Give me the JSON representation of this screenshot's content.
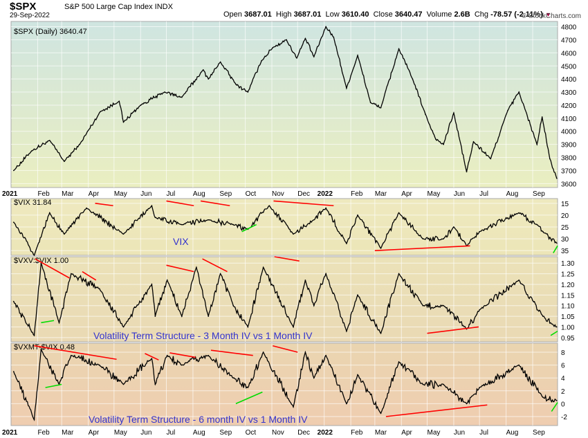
{
  "header": {
    "symbol": "$SPX",
    "name": "S&P 500 Large Cap Index INDX",
    "date": "29-Sep-2022",
    "open_label": "Open",
    "open": "3687.01",
    "high_label": "High",
    "high": "3687.01",
    "low_label": "Low",
    "low": "3610.40",
    "close_label": "Close",
    "close": "3640.47",
    "volume_label": "Volume",
    "volume": "2.6B",
    "chg_label": "Chg",
    "chg": "-78.57 (-2.11%)",
    "credit": "© StockCharts.com"
  },
  "colors": {
    "price_line": "#000000",
    "trend_red": "#ff0000",
    "trend_green": "#00dd00",
    "annotation_text": "#3333cc"
  },
  "chart_data": [
    {
      "type": "line",
      "legend": "$SPX (Daily) 3640.47",
      "y_ticks": [
        3600,
        3700,
        3800,
        3900,
        4000,
        4100,
        4200,
        4300,
        4400,
        4500,
        4600,
        4700,
        4800
      ],
      "ylim": [
        3570,
        4840
      ],
      "x": [
        "2021-01-04",
        "2021-01-25",
        "2021-02-15",
        "2021-03-04",
        "2021-03-22",
        "2021-04-15",
        "2021-05-07",
        "2021-05-12",
        "2021-06-01",
        "2021-06-29",
        "2021-07-19",
        "2021-08-13",
        "2021-08-19",
        "2021-09-02",
        "2021-09-20",
        "2021-10-04",
        "2021-10-20",
        "2021-11-02",
        "2021-11-18",
        "2021-11-30",
        "2021-12-10",
        "2021-12-20",
        "2022-01-03",
        "2022-01-12",
        "2022-01-27",
        "2022-02-09",
        "2022-02-24",
        "2022-03-08",
        "2022-03-29",
        "2022-04-14",
        "2022-04-29",
        "2022-05-11",
        "2022-05-20",
        "2022-06-01",
        "2022-06-16",
        "2022-06-24",
        "2022-07-14",
        "2022-08-03",
        "2022-08-16",
        "2022-09-06",
        "2022-09-12",
        "2022-09-21",
        "2022-09-29"
      ],
      "values": [
        3700,
        3850,
        3930,
        3770,
        3900,
        4150,
        4230,
        4070,
        4200,
        4300,
        4260,
        4470,
        4400,
        4530,
        4360,
        4300,
        4540,
        4640,
        4700,
        4560,
        4710,
        4570,
        4800,
        4720,
        4330,
        4580,
        4220,
        4180,
        4630,
        4400,
        4130,
        3940,
        3900,
        4140,
        3690,
        3920,
        3790,
        4160,
        4300,
        3900,
        4110,
        3790,
        3640
      ]
    },
    {
      "type": "line",
      "annotation": "VIX",
      "legend": "$VIX 31.84",
      "inverted": true,
      "y_ticks": [
        15,
        20,
        25,
        30,
        35
      ],
      "ylim": [
        37,
        13
      ],
      "x": [
        "2021-01-04",
        "2021-01-28",
        "2021-02-15",
        "2021-03-04",
        "2021-03-30",
        "2021-05-12",
        "2021-06-14",
        "2021-06-18",
        "2021-07-19",
        "2021-08-19",
        "2021-09-17",
        "2021-10-04",
        "2021-10-29",
        "2021-11-26",
        "2021-12-20",
        "2022-01-03",
        "2022-01-27",
        "2022-02-09",
        "2022-03-08",
        "2022-03-29",
        "2022-04-26",
        "2022-05-20",
        "2022-06-01",
        "2022-06-16",
        "2022-07-01",
        "2022-08-16",
        "2022-09-06",
        "2022-09-13",
        "2022-09-29"
      ],
      "values": [
        23,
        37,
        19,
        28,
        17,
        28,
        16,
        21,
        24,
        22,
        24,
        26,
        16,
        28,
        22,
        17,
        32,
        20,
        34,
        19,
        30,
        30,
        25,
        33,
        27,
        19,
        24,
        27,
        31.84
      ]
    },
    {
      "type": "line",
      "annotation": "Volatility Term Structure - 3 Month IV vs 1 Month IV",
      "legend": "$VXV:$VIX 1.00",
      "y_ticks": [
        0.95,
        1.0,
        1.05,
        1.1,
        1.15,
        1.2,
        1.25,
        1.3
      ],
      "ylim": [
        0.93,
        1.33
      ],
      "x": [
        "2021-01-04",
        "2021-01-28",
        "2021-02-05",
        "2021-02-26",
        "2021-03-12",
        "2021-04-14",
        "2021-05-12",
        "2021-06-14",
        "2021-06-18",
        "2021-07-02",
        "2021-07-19",
        "2021-08-05",
        "2021-08-19",
        "2021-09-02",
        "2021-09-17",
        "2021-10-04",
        "2021-10-22",
        "2021-11-26",
        "2021-12-10",
        "2021-12-20",
        "2022-01-03",
        "2022-01-27",
        "2022-02-09",
        "2022-03-08",
        "2022-03-29",
        "2022-04-26",
        "2022-05-20",
        "2022-06-16",
        "2022-07-01",
        "2022-08-16",
        "2022-09-13",
        "2022-09-29"
      ],
      "values": [
        1.12,
        0.96,
        1.3,
        1.02,
        1.25,
        1.18,
        1.0,
        1.2,
        1.05,
        1.22,
        1.05,
        1.28,
        1.05,
        1.25,
        1.1,
        1.0,
        1.28,
        1.0,
        1.22,
        1.1,
        1.25,
        0.98,
        1.15,
        0.97,
        1.25,
        1.1,
        1.1,
        0.99,
        1.08,
        1.22,
        1.05,
        1.0
      ]
    },
    {
      "type": "line",
      "annotation": "Volatility Term Structure - 6 month IV vs 1 Month IV",
      "legend": "$VXMT-$VIX 0.48",
      "y_ticks": [
        -2,
        0,
        2,
        4,
        6,
        8
      ],
      "ylim": [
        -3.4,
        9.4
      ],
      "x": [
        "2021-01-04",
        "2021-01-28",
        "2021-02-05",
        "2021-02-26",
        "2021-03-12",
        "2021-04-14",
        "2021-05-12",
        "2021-06-14",
        "2021-06-18",
        "2021-07-02",
        "2021-07-19",
        "2021-08-19",
        "2021-09-17",
        "2021-10-04",
        "2021-10-22",
        "2021-11-26",
        "2021-12-10",
        "2021-12-20",
        "2022-01-03",
        "2022-01-27",
        "2022-02-09",
        "2022-03-08",
        "2022-03-29",
        "2022-04-26",
        "2022-05-20",
        "2022-06-16",
        "2022-07-01",
        "2022-08-16",
        "2022-09-13",
        "2022-09-29"
      ],
      "values": [
        5,
        -2.5,
        8.5,
        3,
        7.5,
        6,
        3,
        7,
        3,
        7.5,
        6,
        7.5,
        4,
        2.5,
        8,
        -0.5,
        8,
        4,
        7.5,
        0,
        4.5,
        -1.5,
        6.5,
        3,
        3,
        0,
        2.5,
        6,
        1,
        0.48
      ]
    }
  ],
  "x_axis": {
    "labels": [
      {
        "text": "2021",
        "date": "2021-01-01",
        "bold": true
      },
      {
        "text": "Feb",
        "date": "2021-02-01"
      },
      {
        "text": "Mar",
        "date": "2021-03-01"
      },
      {
        "text": "Apr",
        "date": "2021-04-01"
      },
      {
        "text": "May",
        "date": "2021-05-01"
      },
      {
        "text": "Jun",
        "date": "2021-06-01"
      },
      {
        "text": "Jul",
        "date": "2021-07-01"
      },
      {
        "text": "Aug",
        "date": "2021-08-01"
      },
      {
        "text": "Sep",
        "date": "2021-09-01"
      },
      {
        "text": "Oct",
        "date": "2021-10-01"
      },
      {
        "text": "Nov",
        "date": "2021-11-01"
      },
      {
        "text": "Dec",
        "date": "2021-12-01"
      },
      {
        "text": "2022",
        "date": "2022-01-01",
        "bold": true
      },
      {
        "text": "Feb",
        "date": "2022-02-01"
      },
      {
        "text": "Mar",
        "date": "2022-03-01"
      },
      {
        "text": "Apr",
        "date": "2022-04-01"
      },
      {
        "text": "May",
        "date": "2022-05-01"
      },
      {
        "text": "Jun",
        "date": "2022-06-01"
      },
      {
        "text": "Jul",
        "date": "2022-07-01"
      },
      {
        "text": "Aug",
        "date": "2022-08-01"
      },
      {
        "text": "Sep",
        "date": "2022-09-01"
      }
    ],
    "range": [
      "2021-01-01",
      "2022-09-30"
    ]
  },
  "trendlines": [
    {
      "panel": 1,
      "color": "red",
      "from": [
        "2021-04-09",
        15
      ],
      "to": [
        "2021-04-30",
        16
      ]
    },
    {
      "panel": 1,
      "color": "red",
      "from": [
        "2021-07-01",
        14
      ],
      "to": [
        "2021-08-02",
        16
      ]
    },
    {
      "panel": 1,
      "color": "red",
      "from": [
        "2021-08-10",
        14
      ],
      "to": [
        "2021-09-13",
        16
      ]
    },
    {
      "panel": 1,
      "color": "red",
      "from": [
        "2021-11-03",
        14
      ],
      "to": [
        "2022-01-12",
        16
      ]
    },
    {
      "panel": 1,
      "color": "red",
      "from": [
        "2022-03-01",
        35
      ],
      "to": [
        "2022-06-20",
        33
      ]
    },
    {
      "panel": 1,
      "color": "green",
      "from": [
        "2021-09-27",
        27
      ],
      "to": [
        "2021-10-14",
        24
      ]
    },
    {
      "panel": 1,
      "color": "green",
      "from": [
        "2022-09-25",
        36
      ],
      "to": [
        "2022-09-30",
        33
      ]
    },
    {
      "panel": 2,
      "color": "red",
      "from": [
        "2021-01-29",
        1.32
      ],
      "to": [
        "2021-03-10",
        1.23
      ]
    },
    {
      "panel": 2,
      "color": "red",
      "from": [
        "2021-03-25",
        1.26
      ],
      "to": [
        "2021-04-10",
        1.22
      ]
    },
    {
      "panel": 2,
      "color": "red",
      "from": [
        "2021-07-01",
        1.29
      ],
      "to": [
        "2021-08-02",
        1.26
      ]
    },
    {
      "panel": 2,
      "color": "red",
      "from": [
        "2021-08-12",
        1.32
      ],
      "to": [
        "2021-09-10",
        1.26
      ]
    },
    {
      "panel": 2,
      "color": "red",
      "from": [
        "2021-11-04",
        1.33
      ],
      "to": [
        "2021-12-03",
        1.31
      ]
    },
    {
      "panel": 2,
      "color": "red",
      "from": [
        "2022-05-01",
        0.97
      ],
      "to": [
        "2022-06-30",
        1.0
      ]
    },
    {
      "panel": 2,
      "color": "green",
      "from": [
        "2021-02-05",
        1.02
      ],
      "to": [
        "2021-02-20",
        1.03
      ]
    },
    {
      "panel": 2,
      "color": "green",
      "from": [
        "2022-09-22",
        0.96
      ],
      "to": [
        "2022-09-30",
        0.98
      ]
    },
    {
      "panel": 3,
      "color": "red",
      "from": [
        "2021-01-28",
        9.0
      ],
      "to": [
        "2021-05-04",
        6.9
      ]
    },
    {
      "panel": 3,
      "color": "red",
      "from": [
        "2021-06-06",
        7.8
      ],
      "to": [
        "2021-06-22",
        6.8
      ]
    },
    {
      "panel": 3,
      "color": "red",
      "from": [
        "2021-07-05",
        7.9
      ],
      "to": [
        "2021-08-04",
        7.2
      ]
    },
    {
      "panel": 3,
      "color": "red",
      "from": [
        "2021-08-22",
        8.3
      ],
      "to": [
        "2021-10-10",
        7.5
      ]
    },
    {
      "panel": 3,
      "color": "red",
      "from": [
        "2021-11-02",
        9.0
      ],
      "to": [
        "2021-12-01",
        8.0
      ]
    },
    {
      "panel": 3,
      "color": "red",
      "from": [
        "2022-03-14",
        -2.0
      ],
      "to": [
        "2022-07-10",
        -0.2
      ]
    },
    {
      "panel": 3,
      "color": "green",
      "from": [
        "2021-02-10",
        2.5
      ],
      "to": [
        "2021-03-01",
        3.0
      ]
    },
    {
      "panel": 3,
      "color": "green",
      "from": [
        "2021-09-20",
        0.0
      ],
      "to": [
        "2021-10-21",
        1.8
      ]
    },
    {
      "panel": 3,
      "color": "green",
      "from": [
        "2022-09-23",
        -1.2
      ],
      "to": [
        "2022-09-30",
        0.2
      ]
    }
  ]
}
